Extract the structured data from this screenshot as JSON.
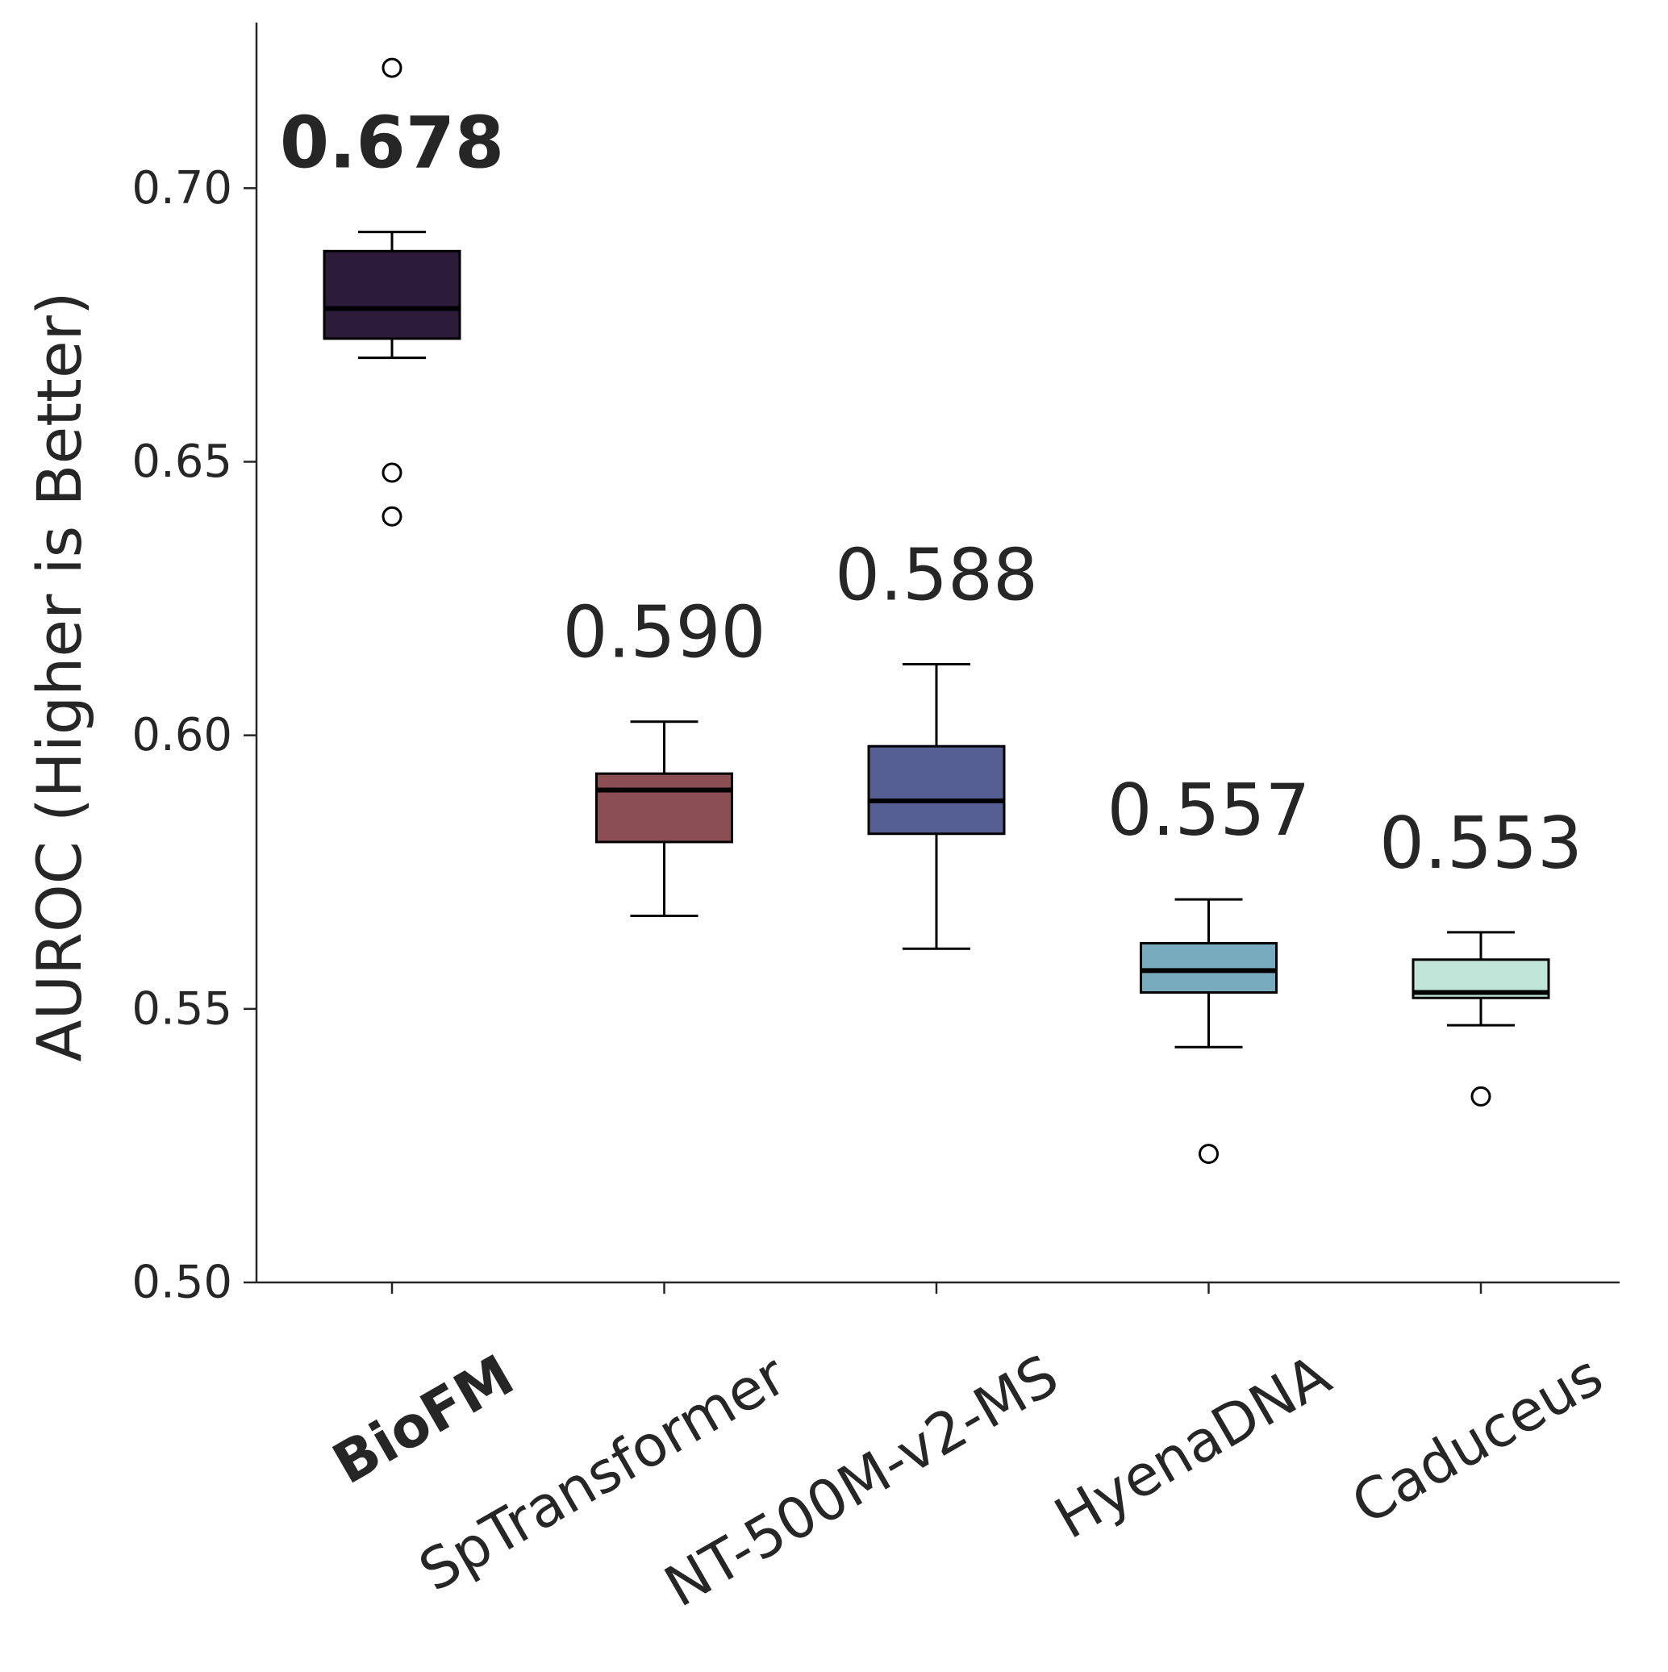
{
  "chart_data": {
    "type": "box",
    "ylabel": "AUROC (Higher is Better)",
    "xlabel": "",
    "ylim": [
      0.5,
      0.73
    ],
    "yticks": [
      0.5,
      0.55,
      0.6,
      0.65,
      0.7
    ],
    "ytick_labels": [
      "0.50",
      "0.55",
      "0.60",
      "0.65",
      "0.70"
    ],
    "grid": false,
    "categories": [
      "BioFM",
      "SpTransformer",
      "NT-500M-v2-MS",
      "HyenaDNA",
      "Caduceus"
    ],
    "highlight": "BioFM",
    "boxes": [
      {
        "name": "BioFM",
        "color": "#2d1b3a",
        "whisker_low": 0.669,
        "q1": 0.6725,
        "median": 0.678,
        "q3": 0.6885,
        "whisker_high": 0.692,
        "outliers": [
          0.722,
          0.648,
          0.64
        ],
        "median_label": "0.678"
      },
      {
        "name": "SpTransformer",
        "color": "#8b4e52",
        "whisker_low": 0.567,
        "q1": 0.5805,
        "median": 0.59,
        "q3": 0.593,
        "whisker_high": 0.6025,
        "outliers": [],
        "median_label": "0.590"
      },
      {
        "name": "NT-500M-v2-MS",
        "color": "#565f92",
        "whisker_low": 0.561,
        "q1": 0.582,
        "median": 0.588,
        "q3": 0.598,
        "whisker_high": 0.613,
        "outliers": [],
        "median_label": "0.588"
      },
      {
        "name": "HyenaDNA",
        "color": "#79abbf",
        "whisker_low": 0.543,
        "q1": 0.553,
        "median": 0.557,
        "q3": 0.562,
        "whisker_high": 0.57,
        "outliers": [
          0.5235
        ],
        "median_label": "0.557"
      },
      {
        "name": "Caduceus",
        "color": "#c0e5d9",
        "whisker_low": 0.547,
        "q1": 0.552,
        "median": 0.553,
        "q3": 0.559,
        "whisker_high": 0.564,
        "outliers": [
          0.534
        ],
        "median_label": "0.553"
      }
    ]
  }
}
